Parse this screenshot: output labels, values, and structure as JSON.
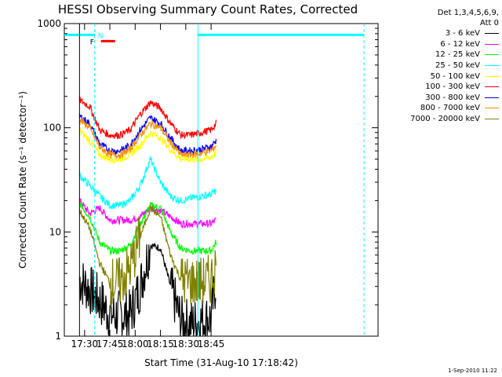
{
  "chart_data": {
    "type": "line",
    "title": "HESSI Observing Summary Count Rates, Corrected",
    "xlabel": "Start Time (31-Aug-10 17:18:42)",
    "ylabel": "Corrected Count Rate (s⁻¹ detector⁻¹)",
    "yscale": "log",
    "ylim": [
      1,
      1000
    ],
    "xlim_minutes": [
      17.3,
      20.4
    ],
    "x_tick_labels": [
      "17:30",
      "17:45",
      "18:00",
      "18:15",
      "18:30",
      "18:45"
    ],
    "x_tick_values_minutes": [
      17.5,
      17.75,
      18.0,
      18.25,
      18.5,
      18.75
    ],
    "y_tick_labels": [
      "1",
      "10",
      "100",
      "1000"
    ],
    "legend_header": [
      "Det 1,3,4,5,6,9,",
      "Att 0"
    ],
    "legend_position": "right",
    "flags": {
      "night_label": "N",
      "fast_label": "F",
      "night_start_min": 17.6,
      "night_end_min": 18.62
    },
    "x": [
      17.45,
      17.55,
      17.65,
      17.75,
      17.85,
      17.95,
      18.05,
      18.15,
      18.25,
      18.35,
      18.45,
      18.55,
      18.65,
      18.75,
      18.8
    ],
    "series": [
      {
        "name": "3 - 6 keV",
        "color": "#000000",
        "values": [
          3.5,
          2.8,
          2.2,
          1.6,
          1.6,
          1.6,
          3.0,
          7.5,
          7.0,
          3.0,
          1.4,
          1.3,
          1.4,
          1.5,
          3.5
        ]
      },
      {
        "name": "6 - 12 keV",
        "color": "#ff00ff",
        "values": [
          20,
          15,
          17,
          13,
          13,
          13,
          14,
          17,
          16,
          14,
          12,
          12,
          12,
          12,
          13
        ]
      },
      {
        "name": "12 - 25 keV",
        "color": "#00ff00",
        "values": [
          19,
          14,
          8,
          6.6,
          6.6,
          7.5,
          12,
          18,
          17,
          10,
          7,
          6.6,
          6.6,
          6.6,
          8
        ]
      },
      {
        "name": "25 - 50 keV",
        "color": "#00ffff",
        "values": [
          35,
          28,
          22,
          18,
          18,
          20,
          28,
          50,
          30,
          22,
          20,
          21,
          22,
          23,
          25
        ]
      },
      {
        "name": "50 - 100 keV",
        "color": "#ffff00",
        "values": [
          95,
          75,
          55,
          50,
          50,
          55,
          68,
          90,
          80,
          62,
          50,
          50,
          50,
          52,
          58
        ]
      },
      {
        "name": "100 - 300 keV",
        "color": "#ff0000",
        "values": [
          185,
          160,
          95,
          85,
          85,
          95,
          135,
          175,
          155,
          110,
          85,
          85,
          90,
          95,
          110
        ]
      },
      {
        "name": "300 - 800 keV",
        "color": "#0000ff",
        "values": [
          130,
          110,
          70,
          60,
          60,
          68,
          95,
          125,
          110,
          80,
          60,
          60,
          62,
          66,
          75
        ]
      },
      {
        "name": "800 - 7000 keV",
        "color": "#ff8c00",
        "values": [
          120,
          100,
          65,
          55,
          55,
          62,
          85,
          110,
          100,
          72,
          55,
          55,
          57,
          60,
          68
        ]
      },
      {
        "name": "7000 - 20000 keV",
        "color": "#808000",
        "values": [
          16,
          11,
          5,
          3.3,
          3.3,
          4.5,
          9,
          17,
          14,
          6,
          3.5,
          3.3,
          3.3,
          3.5,
          5
        ]
      }
    ]
  },
  "footer": {
    "timestamp": "1-Sep-2010 11:22"
  }
}
